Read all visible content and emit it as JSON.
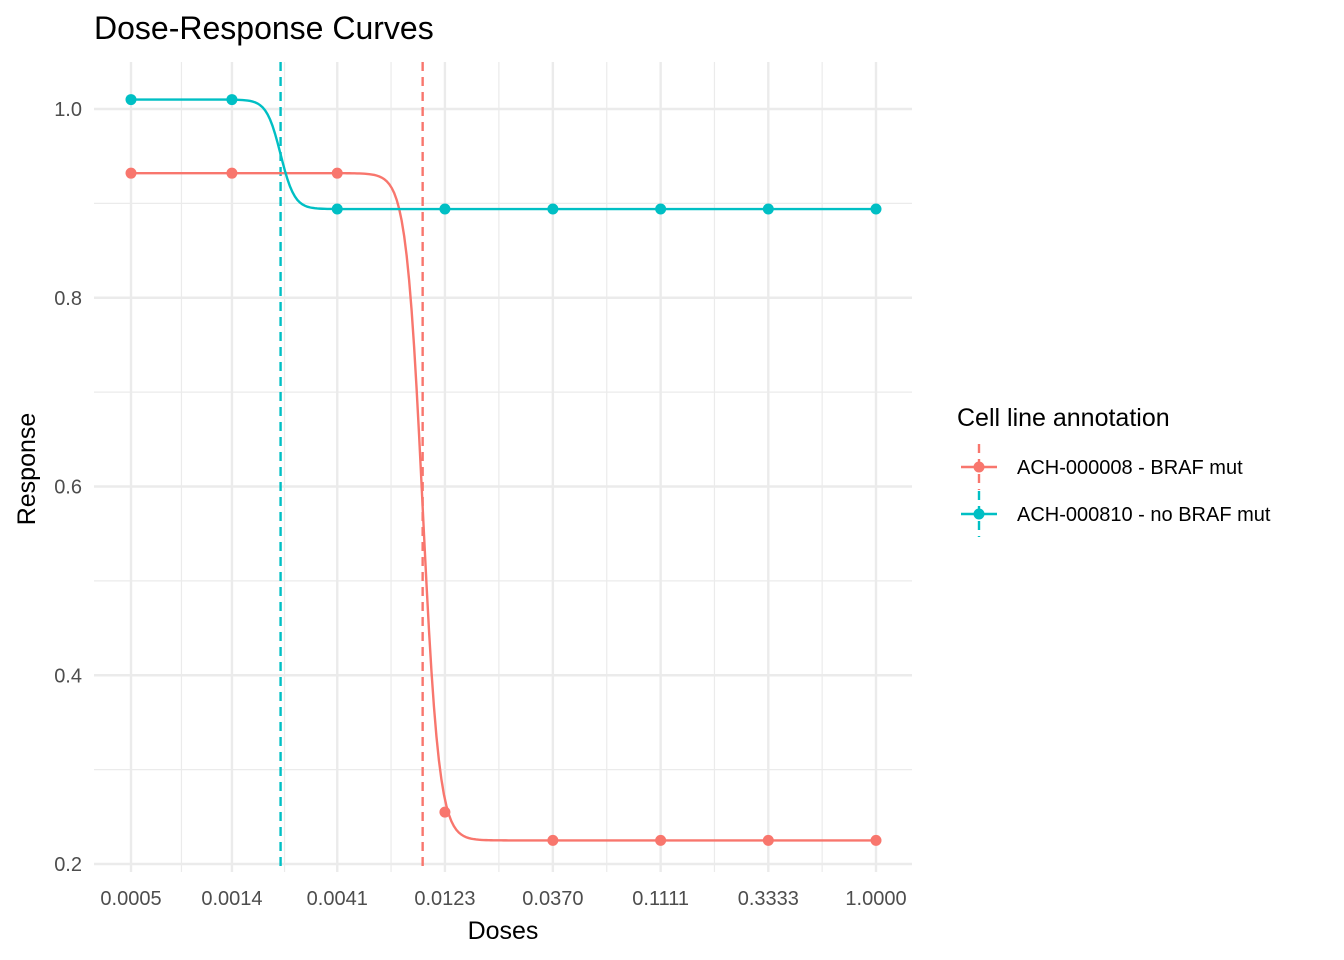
{
  "chart_data": {
    "type": "line",
    "title": "Dose-Response Curves",
    "xlabel": "Doses",
    "ylabel": "Response",
    "x_scale": "log",
    "x_ticks": [
      "0.0005",
      "0.0014",
      "0.0041",
      "0.0123",
      "0.0370",
      "0.1111",
      "0.3333",
      "1.0000"
    ],
    "y_ticks": [
      "0.2",
      "0.4",
      "0.6",
      "0.8",
      "1.0"
    ],
    "ylim": [
      0.19,
      1.05
    ],
    "grid": true,
    "legend": {
      "title": "Cell line annotation",
      "position": "right"
    },
    "series": [
      {
        "name": "ACH-000008 - BRAF mut",
        "color": "#F8766D",
        "points": [
          {
            "x": 0.0005,
            "y": 0.932
          },
          {
            "x": 0.0014,
            "y": 0.932
          },
          {
            "x": 0.0041,
            "y": 0.932
          },
          {
            "x": 0.0123,
            "y": 0.255
          },
          {
            "x": 0.037,
            "y": 0.225
          },
          {
            "x": 0.1111,
            "y": 0.225
          },
          {
            "x": 0.3333,
            "y": 0.225
          },
          {
            "x": 1.0,
            "y": 0.225
          }
        ],
        "fit": {
          "top": 0.932,
          "bottom": 0.225,
          "ec50": 0.0098,
          "hill": 12
        },
        "ec50_line": 0.0098
      },
      {
        "name": "ACH-000810 - no BRAF mut",
        "color": "#00BFC4",
        "points": [
          {
            "x": 0.0005,
            "y": 1.01
          },
          {
            "x": 0.0014,
            "y": 1.01
          },
          {
            "x": 0.0041,
            "y": 0.894
          },
          {
            "x": 0.0123,
            "y": 0.894
          },
          {
            "x": 0.037,
            "y": 0.894
          },
          {
            "x": 0.1111,
            "y": 0.894
          },
          {
            "x": 0.3333,
            "y": 0.894
          },
          {
            "x": 1.0,
            "y": 0.894
          }
        ],
        "fit": {
          "top": 1.01,
          "bottom": 0.894,
          "ec50": 0.0023,
          "hill": 14
        },
        "ec50_line": 0.0023
      }
    ]
  }
}
